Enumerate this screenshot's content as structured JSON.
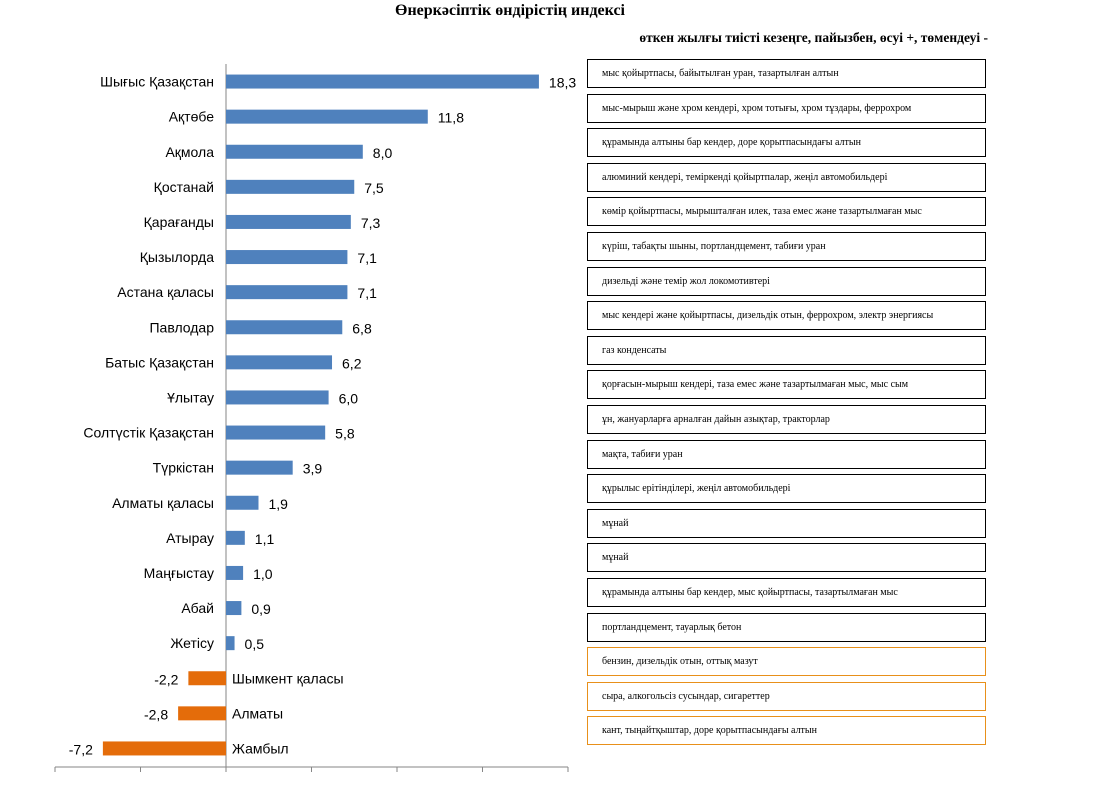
{
  "chart_data": {
    "type": "bar",
    "orientation": "horizontal",
    "title": "Өнеркәсіптік өндірістің индексі",
    "subtitle": "өткен жылғы тиісті кезеңге, пайызбен, өсуі +, төмендеуі -",
    "categories": [
      "Шығыс Қазақстан",
      "Ақтөбе",
      "Ақмола",
      "Қостанай",
      "Қарағанды",
      "Қызылорда",
      "Астана қаласы",
      "Павлодар",
      "Батыс Қазақстан",
      "Ұлытау",
      "Солтүстік Қазақстан",
      "Түркістан",
      "Алматы қаласы",
      "Атырау",
      "Маңғыстау",
      "Абай",
      "Жетісу",
      "Шымкент  қаласы",
      "Алматы",
      "Жамбыл"
    ],
    "values": [
      18.3,
      11.8,
      8.0,
      7.5,
      7.3,
      7.1,
      7.1,
      6.8,
      6.2,
      6.0,
      5.8,
      3.9,
      1.9,
      1.1,
      1.0,
      0.9,
      0.5,
      -2.2,
      -2.8,
      -7.2
    ],
    "value_labels": [
      "18,3",
      "11,8",
      "8,0",
      "7,5",
      "7,3",
      "7,1",
      "7,1",
      "6,8",
      "6,2",
      "6,0",
      "5,8",
      "3,9",
      "1,9",
      "1,1",
      "1,0",
      "0,9",
      "0,5",
      "-2,2",
      "-2,8",
      "-7,2"
    ],
    "xlim": [
      -10,
      20
    ],
    "colors": {
      "positive": "#4f81bd",
      "negative": "#e46c0a"
    },
    "notes": [
      "мыс қойыртпасы,  байытылған уран, тазартылған алтын",
      "мыс-мырыш және хром кендері, хром тотығы, хром тұздары, феррохром",
      "құрамында алтыны бар кендер,  доре қорытпасындағы алтын",
      "алюминий кендері, теміркенді қойыртпалар,  жеңіл автомобильдері",
      "көмір қойыртпасы,  мырышталған илек, таза емес және тазартылмаған  мыс",
      "күріш, табақты шыны, портландцемент, табиғи уран",
      "дизельді және темір жол локомотивтері",
      "мыс кендері және қойыртпасы,  дизельдік отын, феррохром, электр энергиясы",
      "газ конденсаты",
      " қорғасын-мырыш кендері, таза емес және тазартылмаған мыс,  мыс  сым",
      "ұн, жануарларға арналған дайын азықтар, тракторлар",
      "мақта, табиғи уран",
      "құрылыс ерітінділері, жеңіл автомобильдері",
      "мұнай",
      "мұнай",
      "құрамында алтыны бар кендер,  мыс қойыртпасы, тазартылмаған мыс",
      "портландцемент,  тауарлық бетон",
      "бензин, дизельдік отын, оттық мазут",
      "сыра, алкогольсіз сусындар, сигареттер",
      "кант, тыңайтқыштар,  доре қорытпасындағы алтын"
    ]
  }
}
